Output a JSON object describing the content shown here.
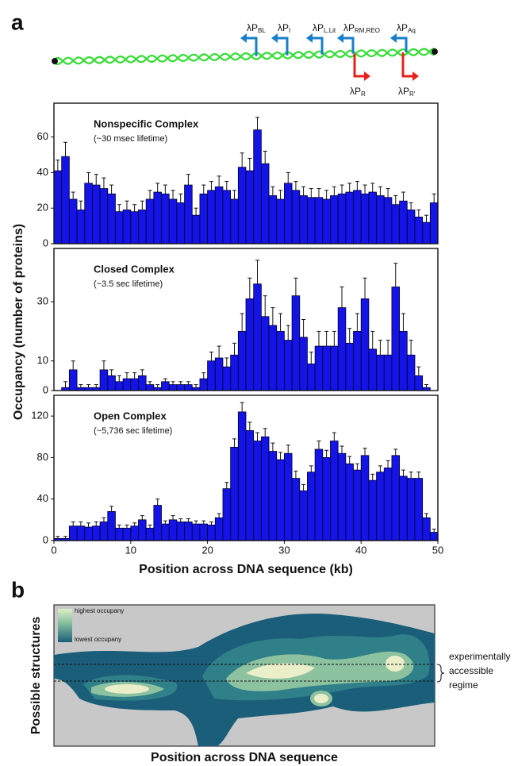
{
  "panels": {
    "a": "a",
    "b": "b"
  },
  "promoters": [
    {
      "label": "λP",
      "sub": "BL",
      "color": "#1a7fc9"
    },
    {
      "label": "λP",
      "sub": "I",
      "color": "#1a7fc9"
    },
    {
      "label": "λP",
      "sub": "L,Lit",
      "color": "#1a7fc9"
    },
    {
      "label": "λP",
      "sub": "RM,REO",
      "color": "#1a7fc9"
    },
    {
      "label": "λP",
      "sub": "Aq",
      "color": "#1a7fc9"
    },
    {
      "label": "λP",
      "sub": "R",
      "color": "#e8201c"
    },
    {
      "label": "λP",
      "sub": "R'",
      "color": "#e8201c"
    }
  ],
  "chart_data": [
    {
      "type": "histogram",
      "title": "Nonspecific Complex",
      "subtitle": "(~30 msec lifetime)",
      "color": "#1414e6",
      "bins": [
        0,
        1,
        2,
        3,
        4,
        5,
        6,
        7,
        8,
        9,
        10,
        11,
        12,
        13,
        14,
        15,
        16,
        17,
        18,
        19,
        20,
        21,
        22,
        23,
        24,
        25,
        26,
        27,
        28,
        29,
        30,
        31,
        32,
        33,
        34,
        35,
        36,
        37,
        38,
        39,
        40,
        41,
        42,
        43,
        44,
        45,
        46,
        47,
        48,
        49,
        50
      ],
      "values": [
        41,
        49,
        25,
        19,
        34,
        33,
        31,
        28,
        18,
        19,
        18,
        19,
        25,
        29,
        28,
        25,
        23,
        33,
        16,
        28,
        30,
        32,
        30,
        25,
        43,
        41,
        64,
        45,
        27,
        25,
        34,
        30,
        27,
        26,
        26,
        25,
        27,
        28,
        29,
        30,
        28,
        29,
        27,
        26,
        22,
        24,
        19,
        15,
        12,
        23
      ],
      "errors": [
        6,
        8,
        4,
        5,
        6,
        6,
        6,
        5,
        4,
        5,
        4,
        5,
        5,
        5,
        5,
        5,
        5,
        6,
        4,
        5,
        5,
        6,
        5,
        5,
        8,
        7,
        7,
        7,
        5,
        5,
        6,
        5,
        5,
        5,
        5,
        5,
        5,
        5,
        5,
        5,
        5,
        5,
        5,
        5,
        5,
        5,
        4,
        4,
        4,
        5
      ],
      "xlim": [
        0,
        50
      ],
      "ylim": [
        0,
        79
      ],
      "yticks": [
        0,
        20,
        40,
        60
      ]
    },
    {
      "type": "histogram",
      "title": "Closed Complex",
      "subtitle": "(~3.5 sec lifetime)",
      "color": "#1414e6",
      "ylabel": "Occupancy (number of proteins)",
      "bins": [
        0,
        1,
        2,
        3,
        4,
        5,
        6,
        7,
        8,
        9,
        10,
        11,
        12,
        13,
        14,
        15,
        16,
        17,
        18,
        19,
        20,
        21,
        22,
        23,
        24,
        25,
        26,
        27,
        28,
        29,
        30,
        31,
        32,
        33,
        34,
        35,
        36,
        37,
        38,
        39,
        40,
        41,
        42,
        43,
        44,
        45,
        46,
        47,
        48,
        49,
        50
      ],
      "values": [
        0,
        1,
        7,
        1,
        1,
        1,
        7,
        5,
        3,
        4,
        4,
        5,
        2,
        1,
        3,
        2,
        2,
        2,
        1,
        4,
        10,
        11,
        8,
        12,
        20,
        31,
        36,
        25,
        22,
        20,
        17,
        32,
        18,
        9,
        15,
        15,
        15,
        28,
        16,
        20,
        31,
        14,
        12,
        12,
        35,
        20,
        12,
        5,
        1,
        0
      ],
      "errors": [
        0,
        2,
        3,
        1,
        1,
        1,
        3,
        2,
        2,
        2,
        2,
        2,
        1,
        1,
        1,
        1,
        1,
        1,
        1,
        2,
        3,
        4,
        3,
        4,
        6,
        7,
        8,
        7,
        6,
        6,
        5,
        6,
        6,
        4,
        5,
        5,
        5,
        7,
        5,
        6,
        7,
        6,
        5,
        5,
        8,
        6,
        5,
        3,
        1,
        0
      ],
      "xlim": [
        0,
        50
      ],
      "ylim": [
        0,
        48
      ],
      "yticks": [
        0,
        10,
        30
      ]
    },
    {
      "type": "histogram",
      "title": "Open Complex",
      "subtitle": "(~5,736 sec lifetime)",
      "color": "#1414e6",
      "xlabel": "Position across DNA sequence (kb)",
      "bins": [
        0,
        1,
        2,
        3,
        4,
        5,
        6,
        7,
        8,
        9,
        10,
        11,
        12,
        13,
        14,
        15,
        16,
        17,
        18,
        19,
        20,
        21,
        22,
        23,
        24,
        25,
        26,
        27,
        28,
        29,
        30,
        31,
        32,
        33,
        34,
        35,
        36,
        37,
        38,
        39,
        40,
        41,
        42,
        43,
        44,
        45,
        46,
        47,
        48,
        49,
        50
      ],
      "values": [
        2,
        2,
        14,
        14,
        13,
        14,
        18,
        28,
        12,
        12,
        14,
        20,
        12,
        34,
        16,
        20,
        18,
        18,
        16,
        16,
        15,
        22,
        50,
        90,
        124,
        106,
        96,
        100,
        86,
        78,
        84,
        60,
        48,
        66,
        88,
        80,
        96,
        84,
        74,
        68,
        82,
        58,
        66,
        70,
        82,
        62,
        60,
        60,
        22,
        8
      ],
      "errors": [
        2,
        2,
        4,
        4,
        4,
        4,
        4,
        5,
        3,
        3,
        3,
        4,
        3,
        6,
        3,
        4,
        3,
        3,
        3,
        3,
        3,
        4,
        6,
        8,
        9,
        8,
        8,
        8,
        8,
        7,
        8,
        7,
        6,
        6,
        8,
        7,
        8,
        7,
        7,
        6,
        7,
        6,
        6,
        7,
        6,
        6,
        6,
        6,
        4,
        3
      ],
      "xlim": [
        0,
        50
      ],
      "ylim": [
        0,
        140
      ],
      "yticks": [
        0,
        40,
        80,
        120
      ],
      "xticks": [
        0,
        10,
        20,
        30,
        40,
        50
      ]
    }
  ],
  "landscape": {
    "legend_high": "highest occupany",
    "legend_low": "lowest occupany",
    "ylabel": "Possible structures",
    "xlabel": "Position across DNA sequence",
    "annotation": [
      "experimentally",
      "accessible",
      "regime"
    ]
  }
}
